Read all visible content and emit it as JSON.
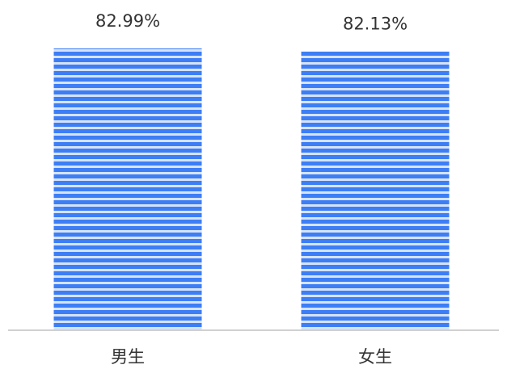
{
  "chart_data": {
    "type": "bar",
    "categories": [
      "男生",
      "女生"
    ],
    "values": [
      82.99,
      82.13
    ],
    "value_labels": [
      "82.99%",
      "82.13%"
    ],
    "color": "#3d7ef5"
  }
}
